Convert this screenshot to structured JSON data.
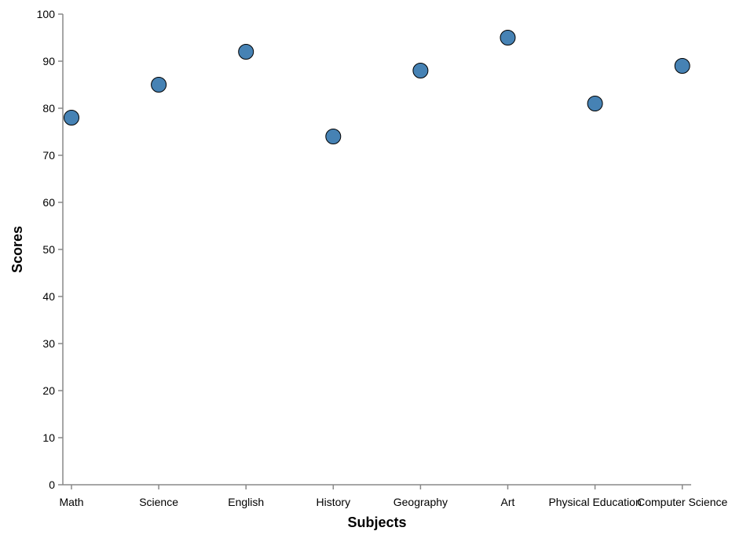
{
  "chart_data": {
    "type": "scatter",
    "title": "",
    "xlabel": "Subjects",
    "ylabel": "Scores",
    "categories": [
      "Math",
      "Science",
      "English",
      "History",
      "Geography",
      "Art",
      "Physical Education",
      "Computer Science"
    ],
    "values": [
      78,
      85,
      92,
      74,
      88,
      95,
      81,
      89
    ],
    "ylim": [
      0,
      100
    ],
    "yticks": [
      0,
      10,
      20,
      30,
      40,
      50,
      60,
      70,
      80,
      90,
      100
    ],
    "grid": false,
    "legend": "none",
    "point_color": "#4682b4",
    "point_stroke": "#000000"
  }
}
